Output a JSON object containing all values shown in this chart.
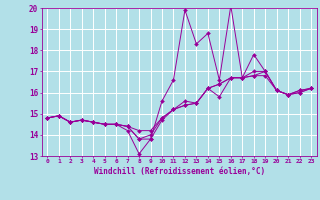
{
  "title": "",
  "xlabel": "Windchill (Refroidissement éolien,°C)",
  "xlim": [
    -0.5,
    23.5
  ],
  "ylim": [
    13,
    20
  ],
  "yticks": [
    13,
    14,
    15,
    16,
    17,
    18,
    19,
    20
  ],
  "xticks": [
    0,
    1,
    2,
    3,
    4,
    5,
    6,
    7,
    8,
    9,
    10,
    11,
    12,
    13,
    14,
    15,
    16,
    17,
    18,
    19,
    20,
    21,
    22,
    23
  ],
  "background_color": "#b2e0e8",
  "grid_color": "#d0eef2",
  "line_color": "#990099",
  "series": [
    [
      14.8,
      14.9,
      14.6,
      14.7,
      14.6,
      14.5,
      14.5,
      14.2,
      13.1,
      13.8,
      15.6,
      16.6,
      19.9,
      18.3,
      18.8,
      16.6,
      20.1,
      16.7,
      17.8,
      17.0,
      16.1,
      15.9,
      16.1,
      16.2
    ],
    [
      14.8,
      14.9,
      14.6,
      14.7,
      14.6,
      14.5,
      14.5,
      14.4,
      13.8,
      13.8,
      14.7,
      15.2,
      15.6,
      15.5,
      16.2,
      16.4,
      16.7,
      16.7,
      17.0,
      17.0,
      16.1,
      15.9,
      16.1,
      16.2
    ],
    [
      14.8,
      14.9,
      14.6,
      14.7,
      14.6,
      14.5,
      14.5,
      14.4,
      13.8,
      14.0,
      14.8,
      15.2,
      15.4,
      15.5,
      16.2,
      16.4,
      16.7,
      16.7,
      16.8,
      17.0,
      16.1,
      15.9,
      16.0,
      16.2
    ],
    [
      14.8,
      14.9,
      14.6,
      14.7,
      14.6,
      14.5,
      14.5,
      14.4,
      14.2,
      14.2,
      14.8,
      15.2,
      15.4,
      15.5,
      16.2,
      15.8,
      16.7,
      16.7,
      16.8,
      16.8,
      16.1,
      15.9,
      16.0,
      16.2
    ]
  ]
}
